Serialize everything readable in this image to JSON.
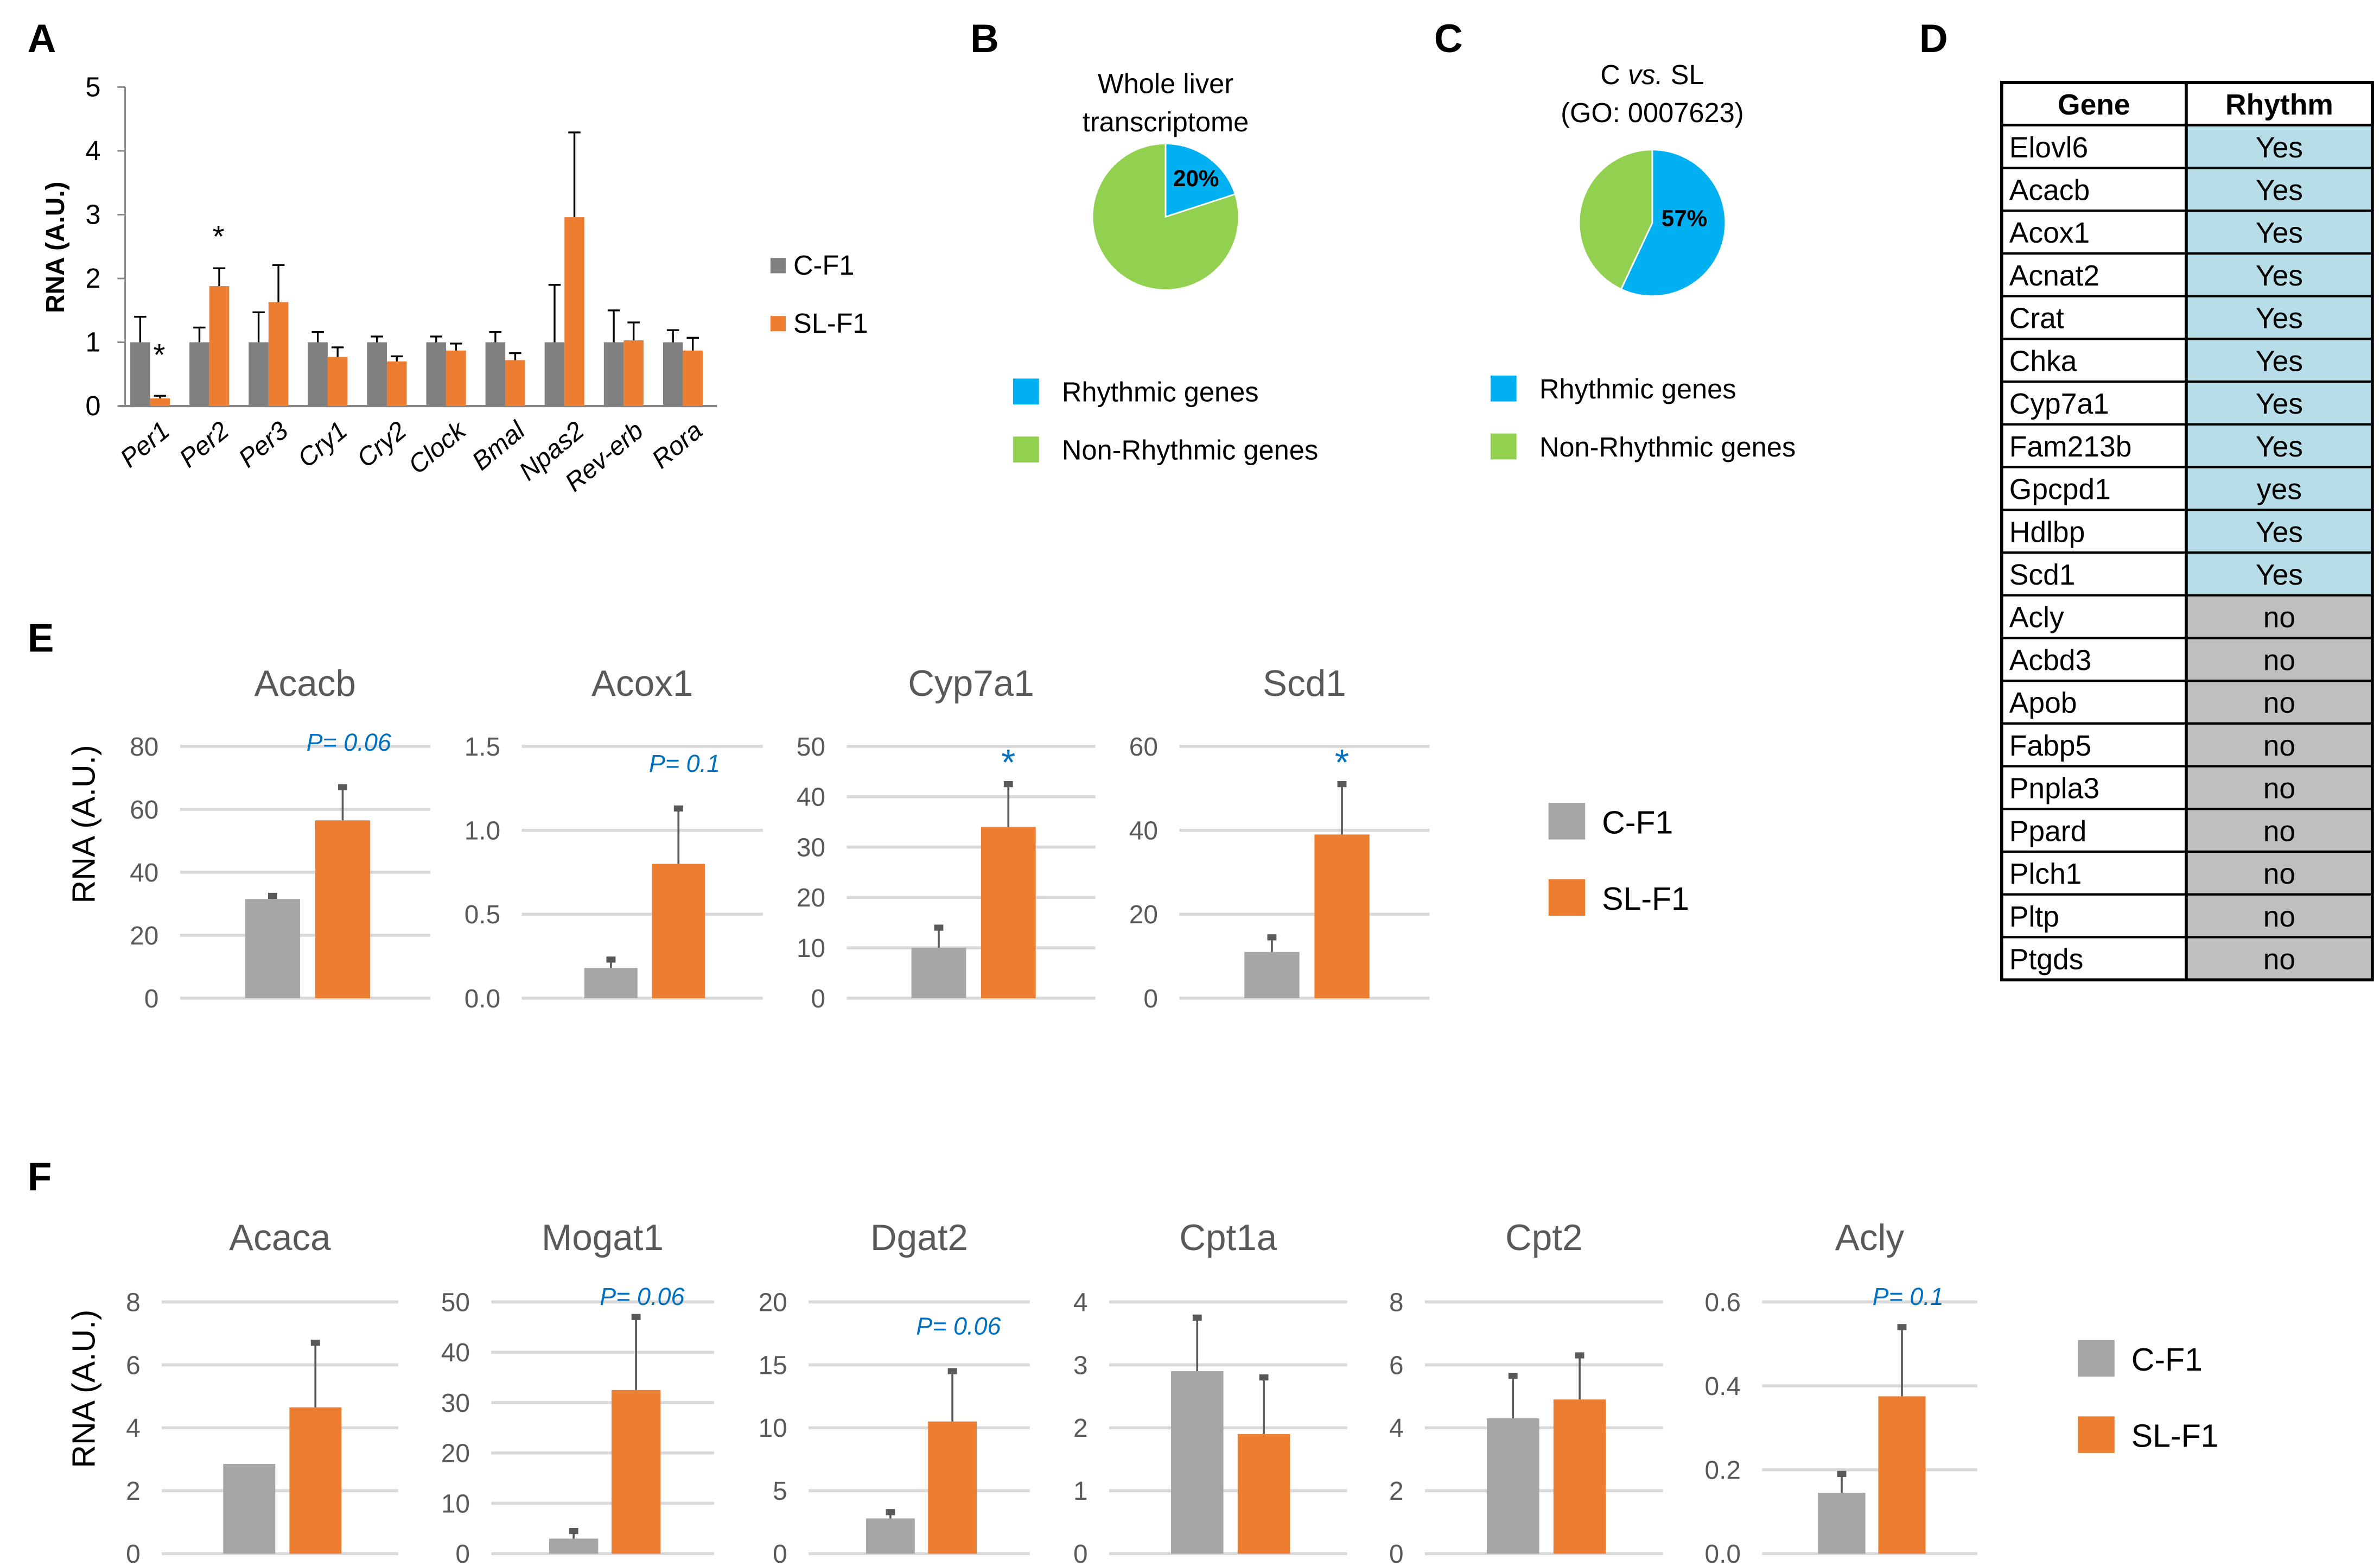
{
  "colors": {
    "control": "#808080",
    "control_light": "#a5a5a5",
    "sl": "#ed7d31",
    "rhythmic": "#00b0f0",
    "non_rhythmic": "#92d050",
    "pvalue": "#0070c0",
    "yes_cell": "#b7dee8",
    "no_cell": "#bfbfbf",
    "grid": "#d9d9d9"
  },
  "panels": {
    "A": "A",
    "B": "B",
    "C": "C",
    "D": "D",
    "E": "E",
    "F": "F"
  },
  "legend": {
    "control": "C-F1",
    "sl": "SL-F1"
  },
  "chart_data": [
    {
      "id": "A",
      "type": "bar",
      "ylabel": "RNA (A.U.)",
      "ylim": [
        0,
        5
      ],
      "yticks": [
        0,
        1,
        2,
        3,
        4,
        5
      ],
      "grid": false,
      "legend_position": "right",
      "categories": [
        "Per1",
        "Per2",
        "Per3",
        "Cry1",
        "Cry2",
        "Clock",
        "Bmal",
        "Npas2",
        "Rev-erb",
        "Rora"
      ],
      "series": [
        {
          "name": "C-F1",
          "values": [
            1,
            1,
            1,
            1,
            1,
            1,
            1,
            1,
            1,
            1
          ],
          "error_upper": [
            1.4,
            1.23,
            1.47,
            1.16,
            1.09,
            1.09,
            1.16,
            1.9,
            1.5,
            1.19
          ]
        },
        {
          "name": "SL-F1",
          "values": [
            0.12,
            1.88,
            1.63,
            0.77,
            0.7,
            0.87,
            0.72,
            2.96,
            1.03,
            0.87
          ],
          "error_upper": [
            0.16,
            2.16,
            2.21,
            0.92,
            0.78,
            0.98,
            0.83,
            4.29,
            1.31,
            1.07
          ]
        }
      ],
      "annotations": [
        {
          "category": "Per1",
          "text": "*"
        },
        {
          "category": "Per2",
          "text": "*"
        }
      ]
    },
    {
      "id": "B",
      "type": "pie",
      "title_lines": [
        "Whole liver",
        "transcriptome"
      ],
      "slices": [
        {
          "name": "Rhythmic genes",
          "value": 20,
          "label": "20%"
        },
        {
          "name": "Non-Rhythmic genes",
          "value": 80
        }
      ]
    },
    {
      "id": "C",
      "type": "pie",
      "title_lines": [
        "C vs. SL",
        "(GO: 0007623)"
      ],
      "slices": [
        {
          "name": "Rhythmic genes",
          "value": 57,
          "label": "57%"
        },
        {
          "name": "Non-Rhythmic genes",
          "value": 43
        }
      ]
    },
    {
      "id": "D",
      "type": "table",
      "columns": [
        "Gene",
        "Rhythm"
      ],
      "rows": [
        [
          "Elovl6",
          "Yes"
        ],
        [
          "Acacb",
          "Yes"
        ],
        [
          "Acox1",
          "Yes"
        ],
        [
          "Acnat2",
          "Yes"
        ],
        [
          "Crat",
          "Yes"
        ],
        [
          "Chka",
          "Yes"
        ],
        [
          "Cyp7a1",
          "Yes"
        ],
        [
          "Fam213b",
          "Yes"
        ],
        [
          "Gpcpd1",
          "yes"
        ],
        [
          "Hdlbp",
          "Yes"
        ],
        [
          "Scd1",
          "Yes"
        ],
        [
          "Acly",
          "no"
        ],
        [
          "Acbd3",
          "no"
        ],
        [
          "Apob",
          "no"
        ],
        [
          "Fabp5",
          "no"
        ],
        [
          "Pnpla3",
          "no"
        ],
        [
          "Ppard",
          "no"
        ],
        [
          "Plch1",
          "no"
        ],
        [
          "Pltp",
          "no"
        ],
        [
          "Ptgds",
          "no"
        ]
      ]
    },
    {
      "id": "E",
      "type": "bar",
      "ylabel": "RNA (A.U.)",
      "grid": true,
      "legend_position": "right",
      "charts": [
        {
          "title": "Acacb",
          "ylim": [
            0,
            80
          ],
          "yticks": [
            "0",
            "20",
            "40",
            "60",
            "80"
          ],
          "values": [
            31.5,
            56.5
          ],
          "error_upper": [
            32.5,
            67
          ],
          "annotation": "P= 0.06"
        },
        {
          "title": "Acox1",
          "ylim": [
            0,
            1.5
          ],
          "yticks": [
            "0.0",
            "0.5",
            "1.0",
            "1.5"
          ],
          "values": [
            0.18,
            0.8
          ],
          "error_upper": [
            0.23,
            1.13
          ],
          "annotation": "P= 0.1"
        },
        {
          "title": "Cyp7a1",
          "ylim": [
            0,
            50
          ],
          "yticks": [
            "0",
            "10",
            "20",
            "30",
            "40",
            "50"
          ],
          "values": [
            10,
            34
          ],
          "error_upper": [
            14,
            42.5
          ],
          "annotation": "*"
        },
        {
          "title": "Scd1",
          "ylim": [
            0,
            60
          ],
          "yticks": [
            "0",
            "20",
            "40",
            "60"
          ],
          "values": [
            11,
            39
          ],
          "error_upper": [
            14.5,
            51
          ],
          "annotation": "*"
        }
      ]
    },
    {
      "id": "F",
      "type": "bar",
      "ylabel": "RNA (A.U.)",
      "grid": true,
      "legend_position": "right",
      "charts": [
        {
          "title": "Acaca",
          "ylim": [
            0,
            8
          ],
          "yticks": [
            "0",
            "2",
            "4",
            "6",
            "8"
          ],
          "values": [
            2.85,
            4.65
          ],
          "error_upper": [
            null,
            6.7
          ],
          "annotation": ""
        },
        {
          "title": "Mogat1",
          "ylim": [
            0,
            50
          ],
          "yticks": [
            "0",
            "10",
            "20",
            "30",
            "40",
            "50"
          ],
          "values": [
            3,
            32.5
          ],
          "error_upper": [
            4.5,
            47
          ],
          "annotation": "P= 0.06"
        },
        {
          "title": "Dgat2",
          "ylim": [
            0,
            20
          ],
          "yticks": [
            "0",
            "5",
            "10",
            "15",
            "20"
          ],
          "values": [
            2.8,
            10.5
          ],
          "error_upper": [
            3.3,
            14.5
          ],
          "annotation": "P= 0.06"
        },
        {
          "title": "Cpt1a",
          "ylim": [
            0,
            4
          ],
          "yticks": [
            "0",
            "1",
            "2",
            "3",
            "4"
          ],
          "values": [
            2.9,
            1.9
          ],
          "error_upper": [
            3.75,
            2.8
          ],
          "annotation": ""
        },
        {
          "title": "Cpt2",
          "ylim": [
            0,
            8
          ],
          "yticks": [
            "0",
            "2",
            "4",
            "6",
            "8"
          ],
          "values": [
            4.3,
            4.9
          ],
          "error_upper": [
            5.65,
            6.3
          ],
          "annotation": ""
        },
        {
          "title": "Acly",
          "ylim": [
            0,
            0.6
          ],
          "yticks": [
            "0.0",
            "0.2",
            "0.4",
            "0.6"
          ],
          "values": [
            0.145,
            0.375
          ],
          "error_upper": [
            0.19,
            0.54
          ],
          "annotation": "P= 0.1"
        }
      ]
    }
  ]
}
